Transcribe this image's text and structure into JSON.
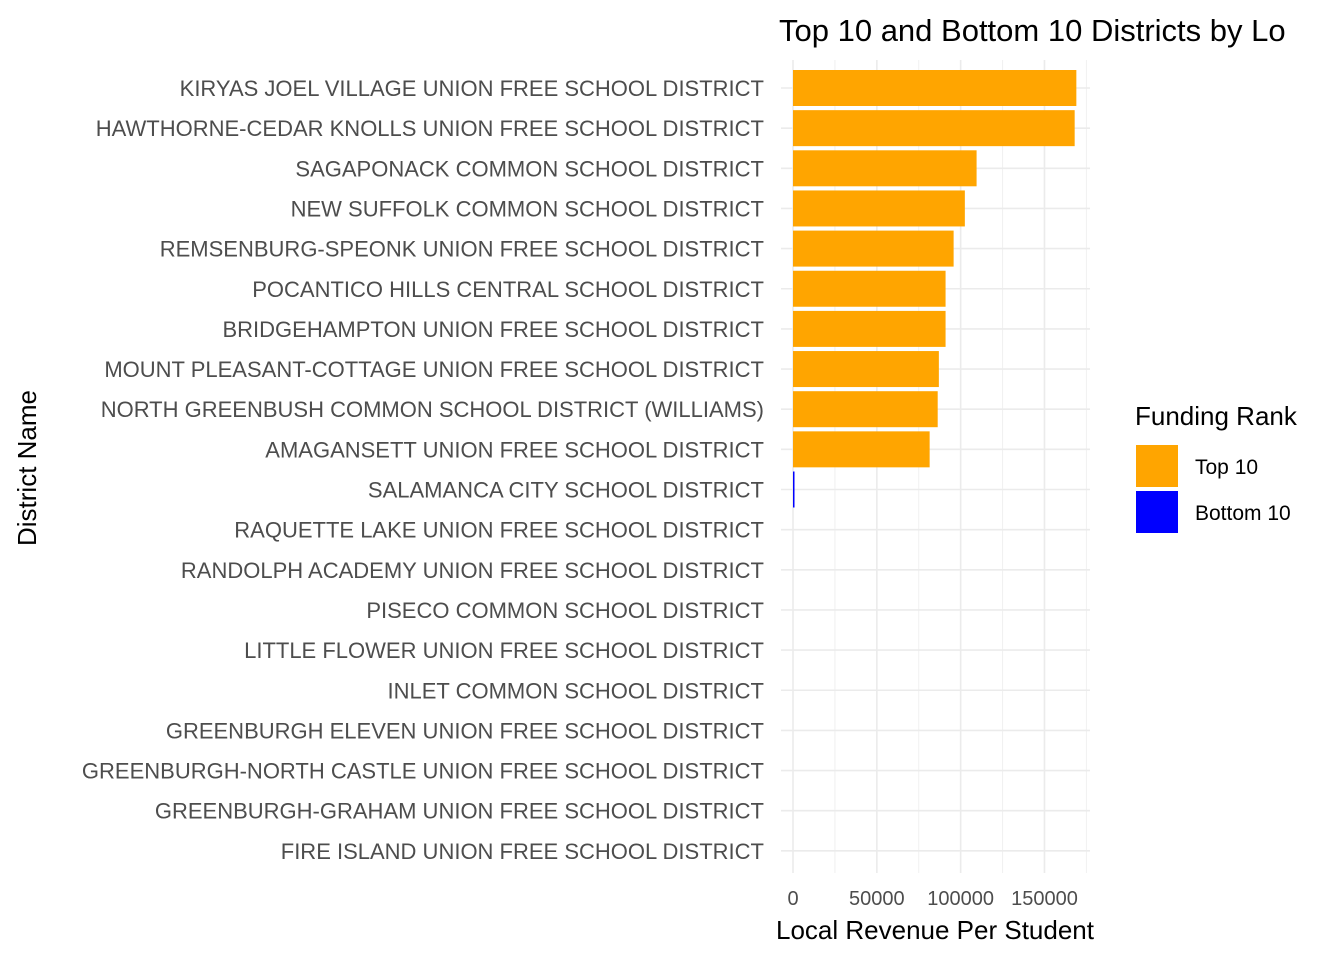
{
  "chart_data": {
    "type": "bar",
    "orientation": "horizontal",
    "title": "Top 10 and Bottom 10 Districts by Lo",
    "xlabel": "Local Revenue Per Student",
    "ylabel": "District Name",
    "xlim": [
      0,
      176000
    ],
    "x_ticks": [
      0,
      50000,
      100000,
      150000
    ],
    "x_tick_labels": [
      "0",
      "50000",
      "100000",
      "150000"
    ],
    "grid": true,
    "legend_position": "right",
    "legend": {
      "title": "Funding Rank",
      "entries": [
        {
          "label": "Top 10",
          "color": "#FFA500"
        },
        {
          "label": "Bottom 10",
          "color": "#0000FF"
        }
      ]
    },
    "categories": [
      "KIRYAS JOEL VILLAGE UNION FREE SCHOOL DISTRICT",
      "HAWTHORNE-CEDAR KNOLLS UNION FREE SCHOOL DISTRICT",
      "SAGAPONACK COMMON SCHOOL DISTRICT",
      "NEW SUFFOLK COMMON SCHOOL DISTRICT",
      "REMSENBURG-SPEONK UNION FREE SCHOOL DISTRICT",
      "POCANTICO HILLS CENTRAL SCHOOL DISTRICT",
      "BRIDGEHAMPTON UNION FREE SCHOOL DISTRICT",
      "MOUNT PLEASANT-COTTAGE UNION FREE SCHOOL DISTRICT",
      "NORTH GREENBUSH COMMON SCHOOL DISTRICT (WILLIAMS)",
      "AMAGANSETT UNION FREE SCHOOL DISTRICT",
      "SALAMANCA CITY SCHOOL DISTRICT",
      "RAQUETTE LAKE UNION FREE SCHOOL DISTRICT",
      "RANDOLPH ACADEMY UNION FREE SCHOOL DISTRICT",
      "PISECO COMMON SCHOOL DISTRICT",
      "LITTLE FLOWER UNION FREE SCHOOL DISTRICT",
      "INLET COMMON SCHOOL DISTRICT",
      "GREENBURGH ELEVEN UNION FREE SCHOOL DISTRICT",
      "GREENBURGH-NORTH CASTLE UNION FREE SCHOOL DISTRICT",
      "GREENBURGH-GRAHAM UNION FREE SCHOOL DISTRICT",
      "FIRE ISLAND UNION FREE SCHOOL DISTRICT"
    ],
    "values": [
      169000,
      168000,
      109500,
      102500,
      95800,
      91000,
      91000,
      87000,
      86300,
      81500,
      600,
      0,
      0,
      0,
      0,
      0,
      0,
      0,
      0,
      0
    ],
    "groups": [
      "Top 10",
      "Top 10",
      "Top 10",
      "Top 10",
      "Top 10",
      "Top 10",
      "Top 10",
      "Top 10",
      "Top 10",
      "Top 10",
      "Bottom 10",
      "Bottom 10",
      "Bottom 10",
      "Bottom 10",
      "Bottom 10",
      "Bottom 10",
      "Bottom 10",
      "Bottom 10",
      "Bottom 10",
      "Bottom 10"
    ]
  }
}
